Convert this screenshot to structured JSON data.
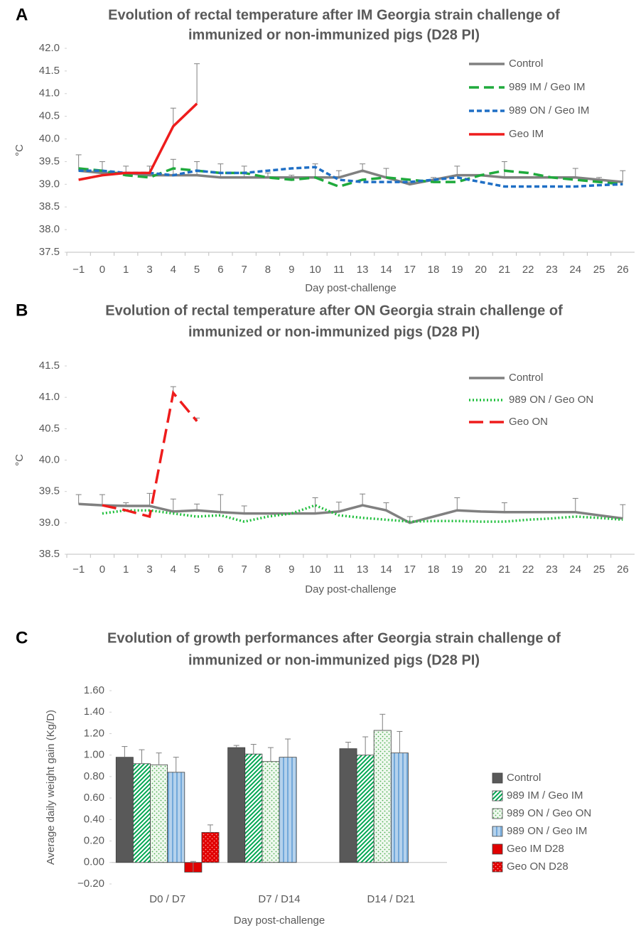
{
  "chart_data": [
    {
      "type": "line",
      "panel_label": "A",
      "title": [
        "Evolution of rectal temperature after IM Georgia strain challenge of",
        "immunized or non-immunized pigs (D28 PI)"
      ],
      "x_label": "Day post-challenge",
      "y_label": "°C",
      "categories": [
        "−1",
        "0",
        "1",
        "3",
        "4",
        "5",
        "6",
        "7",
        "8",
        "9",
        "10",
        "11",
        "13",
        "14",
        "17",
        "18",
        "19",
        "20",
        "21",
        "22",
        "23",
        "24",
        "25",
        "26"
      ],
      "ylim": [
        37.5,
        42.0
      ],
      "yticks": [
        37.5,
        {
          "value": 38,
          "label": "38.0"
        },
        38.5,
        {
          "value": 39,
          "label": "39.0"
        },
        39.5,
        {
          "value": 40,
          "label": "40.0"
        },
        40.5,
        {
          "value": 41,
          "label": "41.0"
        },
        41.5,
        {
          "value": 42,
          "label": "42.0"
        }
      ],
      "series": [
        {
          "name": "Control",
          "color": "#808080",
          "line_style": "solid",
          "values": [
            39.3,
            39.25,
            39.25,
            39.2,
            39.2,
            39.2,
            39.15,
            39.15,
            39.15,
            39.15,
            39.15,
            39.15,
            39.3,
            39.15,
            39.0,
            39.1,
            39.2,
            39.2,
            39.15,
            39.15,
            39.15,
            39.15,
            39.1,
            39.05
          ],
          "errors": [
            0.35,
            0.25,
            0.15,
            0.2,
            0.35,
            0.3,
            0.3,
            0.25,
            0.1,
            0.05,
            0.3,
            0.15,
            0.15,
            0.2,
            0.05,
            0.05,
            0.2,
            null,
            0.35,
            null,
            null,
            0.2,
            0.05,
            0.25
          ]
        },
        {
          "name": "989 IM / Geo IM",
          "color": "#1faa3c",
          "line_style": "dashed",
          "values": [
            39.35,
            39.3,
            39.2,
            39.15,
            39.35,
            39.3,
            39.25,
            39.25,
            39.15,
            39.1,
            39.15,
            38.95,
            39.1,
            39.15,
            39.1,
            39.05,
            39.05,
            39.2,
            39.3,
            39.25,
            39.15,
            39.1,
            39.05,
            39.0
          ]
        },
        {
          "name": "989 ON / Geo IM",
          "color": "#1f6fc5",
          "line_style": "short-dashed",
          "values": [
            39.3,
            39.3,
            39.25,
            39.25,
            39.2,
            39.3,
            39.25,
            39.25,
            39.3,
            39.35,
            39.38,
            39.1,
            39.05,
            39.05,
            39.05,
            39.1,
            39.15,
            39.05,
            38.95,
            38.95,
            38.95,
            38.95,
            38.98,
            39.0
          ]
        },
        {
          "name": "Geo IM",
          "color": "#ee1c1c",
          "line_style": "solid",
          "values": [
            39.1,
            39.2,
            39.25,
            39.25,
            40.28,
            40.78,
            null,
            null,
            null,
            null,
            null,
            null,
            null,
            null,
            null,
            null,
            null,
            null,
            null,
            null,
            null,
            null,
            null,
            null
          ],
          "errors": [
            null,
            null,
            null,
            null,
            0.4,
            0.88,
            null,
            null,
            null,
            null,
            null,
            null,
            null,
            null,
            null,
            null,
            null,
            null,
            null,
            null,
            null,
            null,
            null,
            null
          ]
        }
      ]
    },
    {
      "type": "line",
      "panel_label": "B",
      "title": [
        "Evolution of rectal temperature after ON Georgia strain challenge of",
        "immunized or non-immunized pigs (D28 PI)"
      ],
      "x_label": "Day post-challenge",
      "y_label": "°C",
      "categories": [
        "−1",
        "0",
        "1",
        "3",
        "4",
        "5",
        "6",
        "7",
        "8",
        "9",
        "10",
        "11",
        "13",
        "14",
        "17",
        "18",
        "19",
        "20",
        "21",
        "22",
        "23",
        "24",
        "25",
        "26"
      ],
      "ylim": [
        38.5,
        41.5
      ],
      "yticks": [
        38.5,
        {
          "value": 39,
          "label": "39.0"
        },
        39.5,
        {
          "value": 40,
          "label": "40.0"
        },
        40.5,
        {
          "value": 41,
          "label": "41.0"
        },
        41.5
      ],
      "series": [
        {
          "name": "Control",
          "color": "#808080",
          "line_style": "solid",
          "values": [
            39.3,
            39.28,
            39.27,
            39.27,
            39.18,
            39.2,
            39.17,
            39.15,
            39.15,
            39.15,
            39.15,
            39.18,
            39.28,
            39.2,
            39.0,
            39.1,
            39.2,
            39.18,
            39.17,
            39.17,
            39.17,
            39.17,
            39.12,
            39.07
          ],
          "errors": [
            0.15,
            0.17,
            0.05,
            0.2,
            0.2,
            0.1,
            0.28,
            0.12,
            null,
            null,
            0.25,
            0.15,
            0.18,
            0.12,
            0.1,
            null,
            0.2,
            null,
            0.15,
            null,
            null,
            0.22,
            null,
            0.22
          ]
        },
        {
          "name": "989 ON / Geo ON",
          "color": "#1fbf3c",
          "line_style": "dotted",
          "values": [
            null,
            39.15,
            39.2,
            39.2,
            39.15,
            39.1,
            39.12,
            39.02,
            39.1,
            39.15,
            39.28,
            39.12,
            39.08,
            39.05,
            39.02,
            39.03,
            39.03,
            39.02,
            39.02,
            39.05,
            39.07,
            39.1,
            39.08,
            39.05
          ]
        },
        {
          "name": "Geo ON",
          "color": "#ee1c1c",
          "line_style": "long-dashed",
          "values": [
            null,
            39.28,
            39.2,
            39.1,
            41.07,
            40.62,
            null,
            null,
            null,
            null,
            null,
            null,
            null,
            null,
            null,
            null,
            null,
            null,
            null,
            null,
            null,
            null,
            null,
            null
          ],
          "errors": [
            null,
            null,
            null,
            null,
            0.1,
            0.05,
            null,
            null,
            null,
            null,
            null,
            null,
            null,
            null,
            null,
            null,
            null,
            null,
            null,
            null,
            null,
            null,
            null,
            null
          ]
        }
      ]
    },
    {
      "type": "bar",
      "panel_label": "C",
      "title": [
        "Evolution of growth performances after Georgia strain challenge of",
        "immunized or non-immunized pigs (D28 PI)"
      ],
      "x_label": "Day post-challenge",
      "y_label": "Average daily weight gain (Kg/D)",
      "categories": [
        "D0 / D7",
        "D7 / D14",
        "D14 / D21"
      ],
      "ylim": [
        -0.2,
        1.6
      ],
      "yticks": [
        {
          "value": -0.2,
          "label": "−0.20"
        },
        {
          "value": 0,
          "label": "0.00"
        },
        {
          "value": 0.2,
          "label": "0.20"
        },
        {
          "value": 0.4,
          "label": "0.40"
        },
        {
          "value": 0.6,
          "label": "0.60"
        },
        {
          "value": 0.8,
          "label": "0.80"
        },
        {
          "value": 1,
          "label": "1.00"
        },
        {
          "value": 1.2,
          "label": "1.20"
        },
        {
          "value": 1.4,
          "label": "1.40"
        },
        {
          "value": 1.6,
          "label": "1.60"
        }
      ],
      "series": [
        {
          "name": "Control",
          "color": "#595959",
          "pattern": "solid",
          "values": [
            0.98,
            1.07,
            1.06
          ],
          "errors": [
            0.1,
            0.02,
            0.06
          ]
        },
        {
          "name": "989 IM / Geo IM",
          "color": "#00a651",
          "pattern": "diagonal",
          "values": [
            0.92,
            1.01,
            1.0
          ],
          "errors": [
            0.13,
            0.09,
            0.17
          ]
        },
        {
          "name": "989 ON / Geo ON",
          "color": "#4caf50",
          "pattern": "dots",
          "values": [
            0.91,
            0.94,
            1.23
          ],
          "errors": [
            0.11,
            0.13,
            0.15
          ]
        },
        {
          "name": "989 ON / Geo IM",
          "color": "#5b9bd5",
          "pattern": "vertical",
          "values": [
            0.84,
            0.98,
            1.02
          ],
          "errors": [
            0.14,
            0.17,
            0.2
          ]
        },
        {
          "name": "Geo IM D28",
          "color": "#e00000",
          "pattern": "solid",
          "values": [
            -0.09,
            null,
            null
          ],
          "errors": [
            0.1,
            null,
            null
          ]
        },
        {
          "name": "Geo ON D28",
          "color": "#e00000",
          "pattern": "dots",
          "values": [
            0.28,
            null,
            null
          ],
          "errors": [
            0.07,
            null,
            null
          ]
        }
      ]
    }
  ]
}
